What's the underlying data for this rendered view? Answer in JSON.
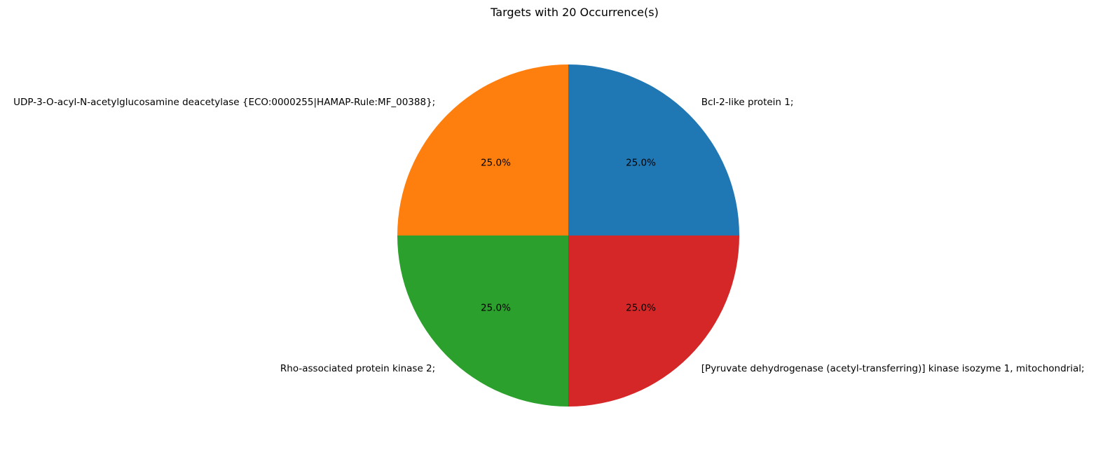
{
  "chart_data": {
    "type": "pie",
    "title": "Targets with 20 Occurrence(s)",
    "categories": [
      "Bcl-2-like protein 1;",
      "UDP-3-O-acyl-N-acetylglucosamine deacetylase {ECO:0000255|HAMAP-Rule:MF_00388};",
      "Rho-associated protein kinase 2;",
      "[Pyruvate dehydrogenase (acetyl-transferring)] kinase isozyme 1, mitochondrial;"
    ],
    "values": [
      20,
      20,
      20,
      20
    ],
    "percent_labels": [
      "25.0%",
      "25.0%",
      "25.0%",
      "25.0%"
    ],
    "colors": [
      "#1f77b4",
      "#ff7f0e",
      "#2ca02c",
      "#d62728"
    ],
    "start_angle_deg": 0,
    "direction": "counterclockwise",
    "legend": "none"
  }
}
